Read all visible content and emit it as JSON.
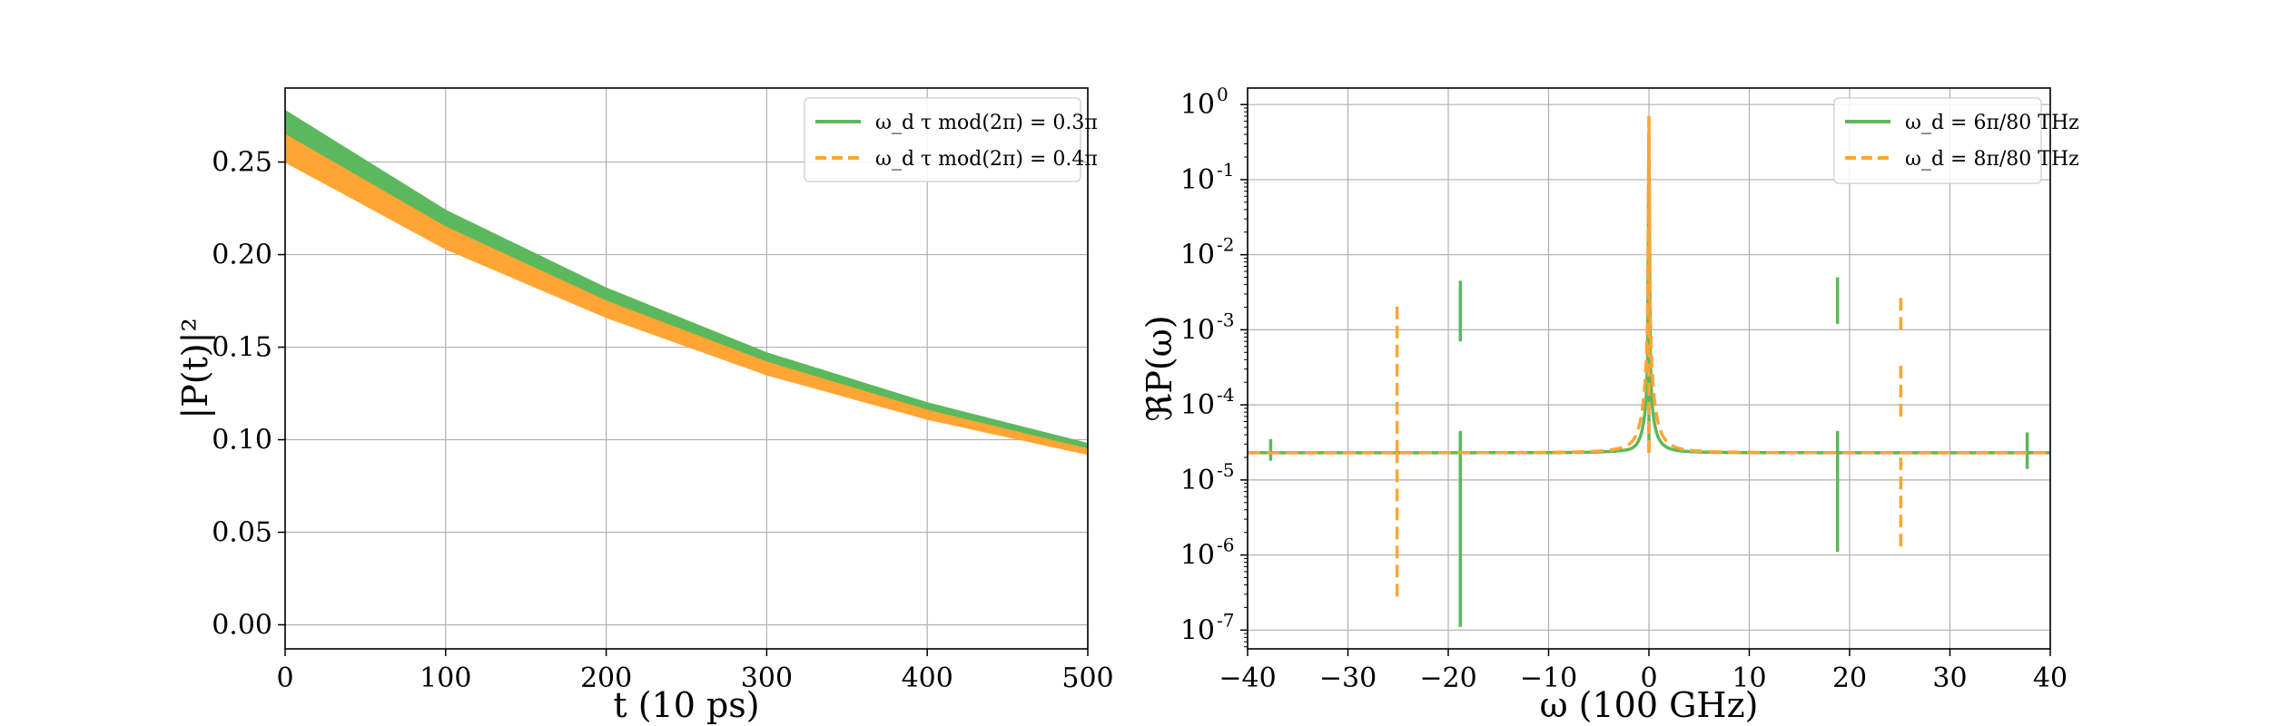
{
  "chart_data": [
    {
      "type": "area",
      "xlabel": "t (10 ps)",
      "ylabel": "|P(t)|²",
      "xlim": [
        0,
        500
      ],
      "ylim": [
        -0.013,
        0.29
      ],
      "xticks": [
        0,
        100,
        200,
        300,
        400,
        500
      ],
      "xtick_labels": [
        "0",
        "100",
        "200",
        "300",
        "400",
        "500"
      ],
      "yticks": [
        0.0,
        0.05,
        0.1,
        0.15,
        0.2,
        0.25
      ],
      "ytick_labels": [
        "0.00",
        "0.05",
        "0.10",
        "0.15",
        "0.20",
        "0.25"
      ],
      "grid": true,
      "legend_position": "top-right",
      "series": [
        {
          "name": "ω_d τ mod(2π) = 0.3π",
          "color": "#5cb85c",
          "style": "solid",
          "x": [
            0,
            100,
            200,
            300,
            400,
            500
          ],
          "upper": [
            0.278,
            0.224,
            0.182,
            0.147,
            0.12,
            0.098
          ],
          "lower": [
            0.255,
            0.208,
            0.17,
            0.139,
            0.114,
            0.095
          ]
        },
        {
          "name": "ω_d τ mod(2π) = 0.4π",
          "color": "#ffa534",
          "style": "dashed",
          "x": [
            0,
            100,
            200,
            300,
            400,
            500
          ],
          "upper": [
            0.265,
            0.215,
            0.175,
            0.142,
            0.116,
            0.095
          ],
          "lower": [
            0.25,
            0.203,
            0.166,
            0.135,
            0.111,
            0.092
          ]
        }
      ]
    },
    {
      "type": "line",
      "xlabel": "ω (100 GHz)",
      "ylabel": "ℜP(ω)",
      "yscale": "log",
      "xlim": [
        -40,
        40
      ],
      "ylim_exp": [
        -7.25,
        0.22
      ],
      "xticks": [
        -40,
        -30,
        -20,
        -10,
        0,
        10,
        20,
        30,
        40
      ],
      "xtick_labels": [
        "−40",
        "−30",
        "−20",
        "−10",
        "0",
        "10",
        "20",
        "30",
        "40"
      ],
      "ytick_exps": [
        0,
        -1,
        -2,
        -3,
        -4,
        -5,
        -6,
        -7
      ],
      "ytick_labels": [
        "10",
        "10",
        "10",
        "10",
        "10",
        "10",
        "10",
        "10"
      ],
      "ytick_exp_labels": [
        "0",
        "-1",
        "-2",
        "-3",
        "-4",
        "-5",
        "-6",
        "-7"
      ],
      "grid": true,
      "legend_position": "top-right",
      "baseline": 2.3e-05,
      "series": [
        {
          "name": "ω_d = 6π/80 THz",
          "color": "#5cb85c",
          "style": "solid",
          "peak": {
            "x": 0,
            "y": 0.4
          },
          "spikes": [
            {
              "x": -37.7,
              "low": 1.8e-05,
              "high": 3.5e-05
            },
            {
              "x": -18.8,
              "low": 1.1e-07,
              "high": 4.5e-05
            },
            {
              "x": -18.8,
              "low": 0.0007,
              "high": 0.0045
            },
            {
              "x": 18.8,
              "low": 1.1e-06,
              "high": 4.5e-05
            },
            {
              "x": 18.8,
              "low": 0.0012,
              "high": 0.005
            },
            {
              "x": 37.7,
              "low": 1.4e-05,
              "high": 4.3e-05
            }
          ]
        },
        {
          "name": "ω_d = 8π/80 THz",
          "color": "#ffa534",
          "style": "dashed",
          "peak": {
            "x": 0,
            "y": 0.7
          },
          "spikes": [
            {
              "x": -25.1,
              "low": 2.8e-07,
              "high": 2.3e-05
            },
            {
              "x": -25.1,
              "low": 2.3e-05,
              "high": 0.0022
            },
            {
              "x": 25.1,
              "low": 1.3e-06,
              "high": 2.3e-05
            },
            {
              "x": 25.1,
              "low": 7e-05,
              "high": 0.0004
            },
            {
              "x": 25.1,
              "low": 0.001,
              "high": 0.003
            }
          ]
        }
      ]
    }
  ]
}
